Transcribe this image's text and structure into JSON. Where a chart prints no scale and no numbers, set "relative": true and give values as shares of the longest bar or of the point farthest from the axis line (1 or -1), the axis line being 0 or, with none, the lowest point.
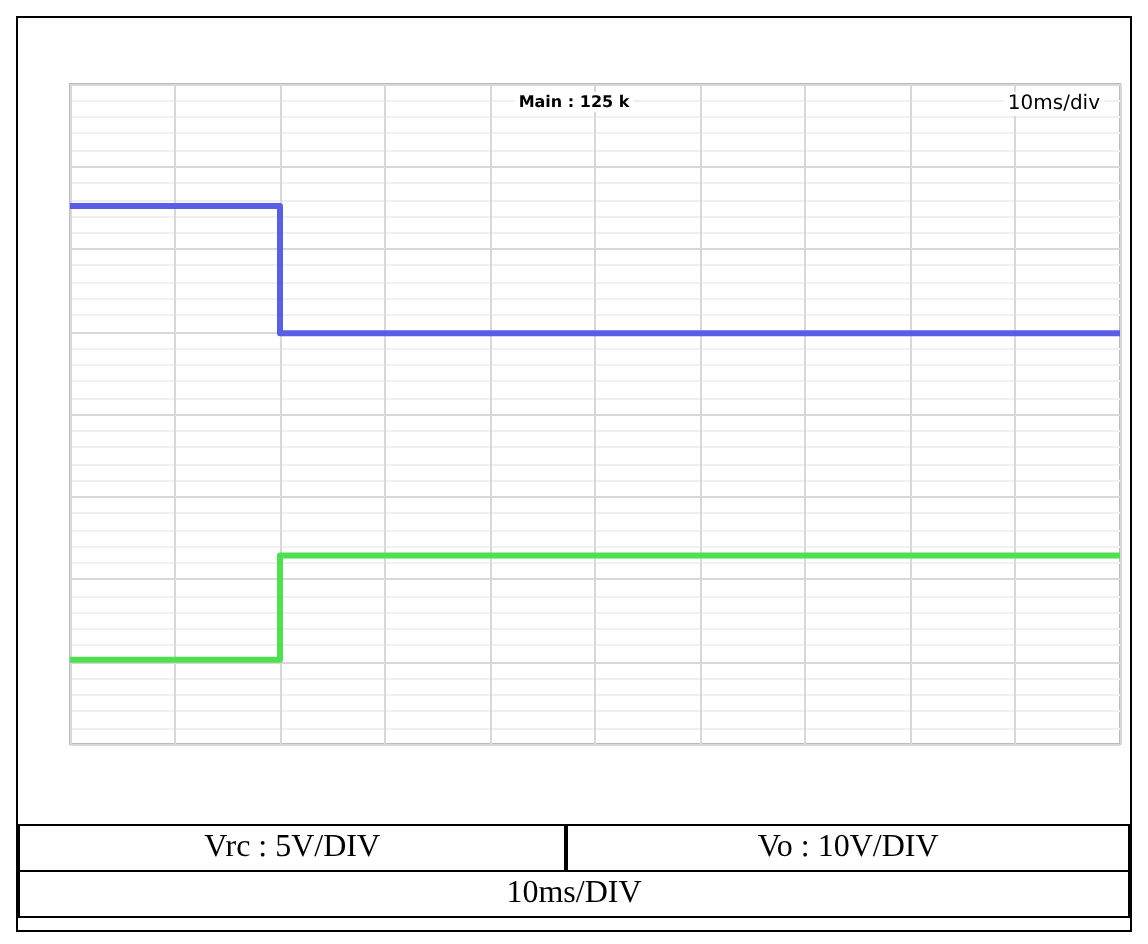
{
  "chart_data": {
    "type": "step",
    "relative": true,
    "grid": true,
    "marker": "none",
    "categories": [
      null,
      null,
      null,
      null,
      null,
      null,
      null,
      null,
      null,
      null,
      null
    ],
    "series": [
      {
        "color": "#5a5ee6",
        "values": [
          1,
          1,
          0.72,
          0.72,
          0.72,
          0.72,
          0.72,
          0.72,
          0.72,
          0.72,
          0.72
        ]
      },
      {
        "color": "#4ee04e",
        "values": [
          0,
          0,
          0.23,
          0.23,
          0.23,
          0.23,
          0.23,
          0.23,
          0.23,
          0.23,
          0.23
        ]
      }
    ],
    "annotations": [
      "Main : 125 k",
      "10ms/div",
      "Vrc : 5V/DIV",
      "Vo : 10V/DIV",
      "10ms/DIV"
    ]
  }
}
